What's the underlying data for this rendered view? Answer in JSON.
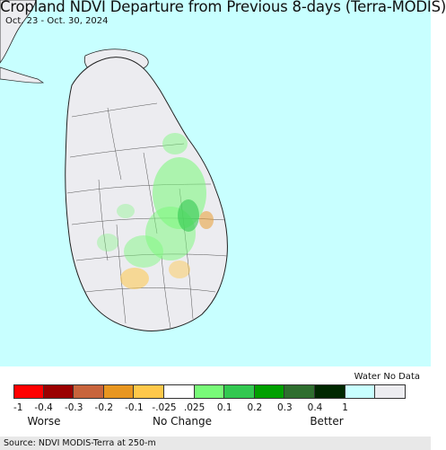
{
  "title": "Cropland NDVI Departure from Previous 8-days (Terra-MODIS)",
  "date_range": "Oct. 23 - Oct. 30, 2024",
  "legend": {
    "header": "Water No Data",
    "swatches": [
      {
        "name": "le-minus-1",
        "color": "#ff0000"
      },
      {
        "name": "minus-0-4",
        "color": "#9b0000"
      },
      {
        "name": "minus-0-3",
        "color": "#c8643c"
      },
      {
        "name": "minus-0-2",
        "color": "#e89620"
      },
      {
        "name": "minus-0-1",
        "color": "#ffc84a"
      },
      {
        "name": "no-change",
        "color": "#ffffff"
      },
      {
        "name": "plus-0-1",
        "color": "#78fa78"
      },
      {
        "name": "plus-0-2",
        "color": "#32c850"
      },
      {
        "name": "plus-0-3",
        "color": "#00a000"
      },
      {
        "name": "plus-0-4",
        "color": "#2e6e2e"
      },
      {
        "name": "plus-1",
        "color": "#002800"
      },
      {
        "name": "water",
        "color": "#c8ffff"
      },
      {
        "name": "no-data",
        "color": "#ececf0"
      }
    ],
    "ticks": [
      "-1",
      "-0.4",
      "-0.3",
      "-0.2",
      "-0.1",
      "-.025",
      ".025",
      "0.1",
      "0.2",
      "0.3",
      "0.4",
      "1"
    ],
    "categories": {
      "worse": "Worse",
      "no_change": "No Change",
      "better": "Better"
    }
  },
  "source": "Source: NDVI MODIS-Terra at 250-m",
  "colors": {
    "water": "#c8ffff",
    "land_no_data": "#ececf0",
    "border": "#333333"
  }
}
